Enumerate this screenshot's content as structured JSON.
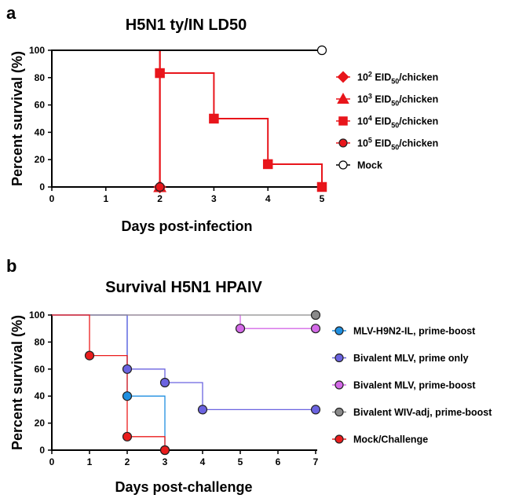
{
  "chart_data": [
    {
      "panel": "a",
      "type": "line",
      "step": true,
      "title": "H5N1 ty/IN LD50",
      "xlabel": "Days post-infection",
      "ylabel": "Percent survival (%)",
      "xlim": [
        0,
        5
      ],
      "ylim": [
        0,
        100
      ],
      "xticks": [
        0,
        1,
        2,
        3,
        4,
        5
      ],
      "yticks": [
        0,
        20,
        40,
        60,
        80,
        100
      ],
      "legend_position": "right",
      "series": [
        {
          "name_pre": "10",
          "exp": "2",
          "name_mid": " EID",
          "sub": "50",
          "name_post": "/chicken",
          "marker": "diamond",
          "color": "#e8151b",
          "fill": "#e8151b",
          "points": [
            [
              2,
              0
            ]
          ],
          "x": [
            0,
            2
          ],
          "y": [
            100,
            0
          ]
        },
        {
          "name_pre": "10",
          "exp": "3",
          "name_mid": " EID",
          "sub": "50",
          "name_post": "/chicken",
          "marker": "triangle",
          "color": "#e8151b",
          "fill": "#e8151b",
          "points": [
            [
              2,
              0
            ]
          ],
          "x": [
            0,
            2
          ],
          "y": [
            100,
            0
          ]
        },
        {
          "name_pre": "10",
          "exp": "4",
          "name_mid": " EID",
          "sub": "50",
          "name_post": "/chicken",
          "marker": "square",
          "color": "#e8151b",
          "fill": "#e8151b",
          "points": [
            [
              2,
              83.3
            ],
            [
              3,
              50
            ],
            [
              4,
              16.7
            ],
            [
              5,
              0
            ]
          ],
          "x": [
            0,
            2,
            3,
            4,
            5
          ],
          "y": [
            100,
            83.3,
            50,
            16.7,
            0
          ]
        },
        {
          "name_pre": "10",
          "exp": "5",
          "name_mid": " EID",
          "sub": "50",
          "name_post": "/chicken",
          "marker": "circle",
          "color": "#e8151b",
          "fill": "#e8151b",
          "points": [
            [
              2,
              0
            ]
          ],
          "x": [
            0,
            2
          ],
          "y": [
            100,
            0
          ]
        },
        {
          "name_pre": "Mock",
          "exp": "",
          "name_mid": "",
          "sub": "",
          "name_post": "",
          "marker": "circle",
          "color": "#000000",
          "fill": "#ffffff",
          "points": [
            [
              5,
              100
            ]
          ],
          "x": [
            0,
            5
          ],
          "y": [
            100,
            100
          ]
        }
      ]
    },
    {
      "panel": "b",
      "type": "line",
      "step": true,
      "title": "Survival H5N1 HPAIV",
      "xlabel": "Days post-challenge",
      "ylabel": "Percent survival (%)",
      "xlim": [
        0,
        7
      ],
      "ylim": [
        0,
        100
      ],
      "xticks": [
        0,
        1,
        2,
        3,
        4,
        5,
        6,
        7
      ],
      "yticks": [
        0,
        20,
        40,
        60,
        80,
        100
      ],
      "legend_position": "right",
      "series": [
        {
          "name": "MLV-H9N2-IL, prime-boost",
          "marker": "circle",
          "color": "#1f8fe0",
          "fill": "#1f8fe0",
          "points": [
            [
              2,
              40
            ],
            [
              3,
              0
            ]
          ],
          "x": [
            0,
            2,
            3
          ],
          "y": [
            100,
            40,
            0
          ]
        },
        {
          "name": "Bivalent MLV, prime only",
          "marker": "circle",
          "color": "#6b63e0",
          "fill": "#6b63e0",
          "points": [
            [
              2,
              60
            ],
            [
              3,
              50
            ],
            [
              4,
              30
            ],
            [
              7,
              30
            ]
          ],
          "x": [
            0,
            2,
            3,
            4,
            7
          ],
          "y": [
            100,
            60,
            50,
            30,
            30
          ]
        },
        {
          "name": "Bivalent MLV, prime-boost",
          "marker": "circle",
          "color": "#d46ae8",
          "fill": "#d46ae8",
          "points": [
            [
              5,
              90
            ],
            [
              7,
              90
            ]
          ],
          "x": [
            0,
            5,
            7
          ],
          "y": [
            100,
            90,
            90
          ]
        },
        {
          "name": "Bivalent WIV-adj, prime-boost",
          "marker": "circle",
          "color": "#8a8a8a",
          "fill": "#8a8a8a",
          "points": [
            [
              7,
              100
            ]
          ],
          "x": [
            0,
            7
          ],
          "y": [
            100,
            100
          ]
        },
        {
          "name": "Mock/Challenge",
          "marker": "circle",
          "color": "#ea1c1c",
          "fill": "#ea1c1c",
          "points": [
            [
              1,
              70
            ],
            [
              2,
              10
            ],
            [
              3,
              0
            ]
          ],
          "x": [
            0,
            1,
            2,
            3
          ],
          "y": [
            100,
            70,
            10,
            0
          ]
        }
      ]
    }
  ]
}
